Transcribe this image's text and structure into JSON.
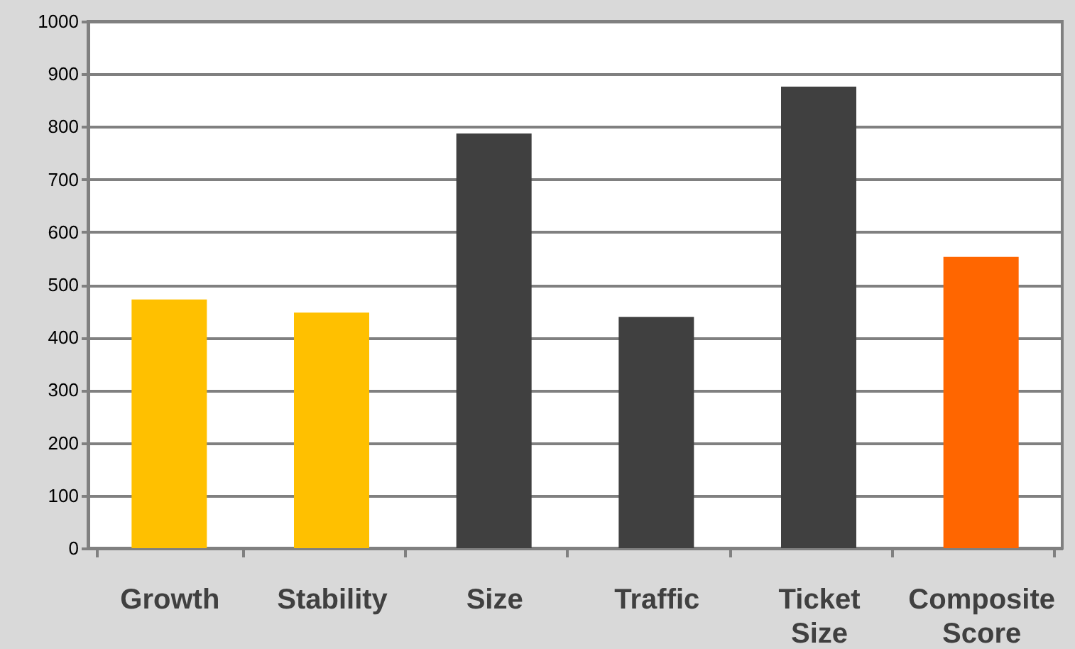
{
  "chart_data": {
    "type": "bar",
    "categories": [
      "Growth",
      "Stability",
      "Size",
      "Traffic",
      "Ticket Size",
      "Composite Score"
    ],
    "values": [
      472,
      447,
      787,
      439,
      876,
      553
    ],
    "colors": [
      "#ffc000",
      "#ffc000",
      "#404040",
      "#404040",
      "#404040",
      "#ff6600"
    ],
    "ylim": [
      0,
      1000
    ],
    "yticks": [
      0,
      100,
      200,
      300,
      400,
      500,
      600,
      700,
      800,
      900,
      1000
    ],
    "grid": "y"
  }
}
